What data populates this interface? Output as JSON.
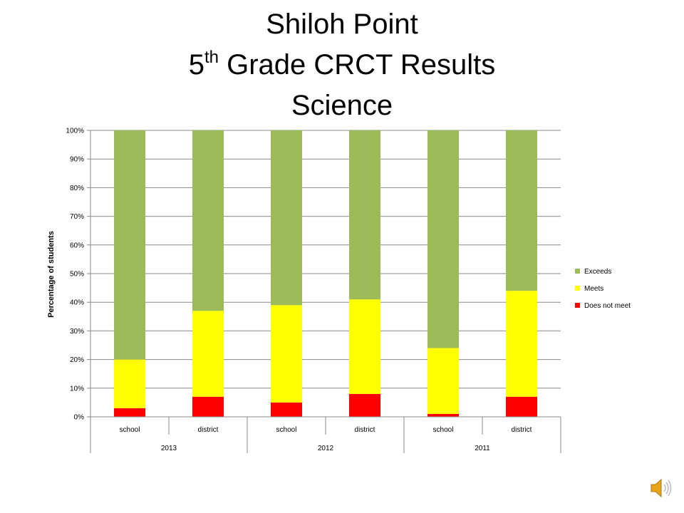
{
  "title": {
    "line1": "Shiloh Point",
    "line2_prefix": "5",
    "line2_sup": "th",
    "line2_rest": " Grade CRCT Results",
    "line3": "Science"
  },
  "chart_data": {
    "type": "bar",
    "stacked": true,
    "percent_axis": true,
    "ylabel": "Percentage of students",
    "ylim": [
      0,
      100
    ],
    "yticks": [
      "0%",
      "10%",
      "20%",
      "30%",
      "40%",
      "50%",
      "60%",
      "70%",
      "80%",
      "90%",
      "100%"
    ],
    "categories": [
      "school",
      "district",
      "school",
      "district",
      "school",
      "district"
    ],
    "groups": [
      {
        "label": "2013",
        "members": [
          "school",
          "district"
        ]
      },
      {
        "label": "2012",
        "members": [
          "school",
          "district"
        ]
      },
      {
        "label": "2011",
        "members": [
          "school",
          "district"
        ]
      }
    ],
    "series": [
      {
        "name": "Does not meet",
        "color": "#ff0000",
        "values": [
          3,
          7,
          5,
          8,
          1,
          7
        ]
      },
      {
        "name": "Meets",
        "color": "#ffff00",
        "values": [
          17,
          30,
          34,
          33,
          23,
          37
        ]
      },
      {
        "name": "Exceeds",
        "color": "#9bbb59",
        "values": [
          80,
          63,
          61,
          59,
          76,
          56
        ]
      }
    ],
    "legend_order": [
      "Exceeds",
      "Meets",
      "Does not meet"
    ],
    "legend_position": "right",
    "grid": true
  },
  "icons": {
    "audio": "speaker-icon"
  }
}
